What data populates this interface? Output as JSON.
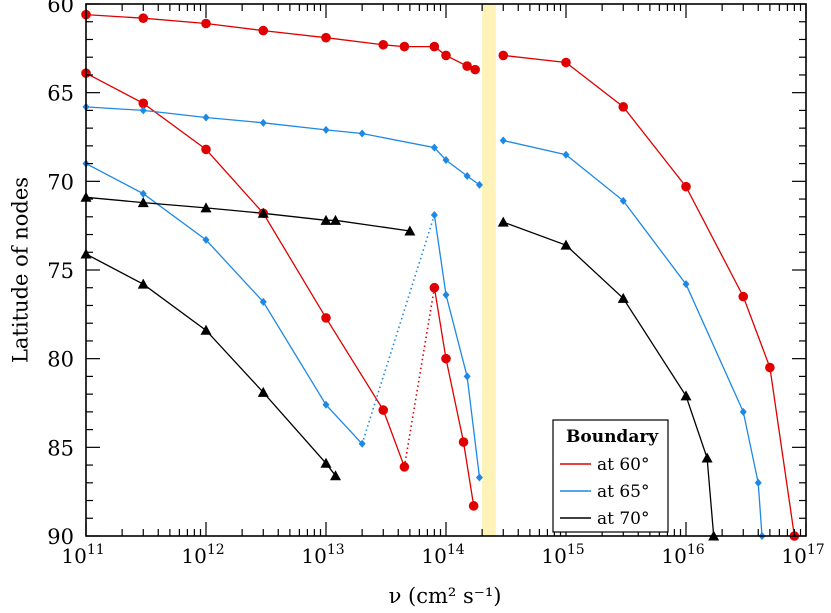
{
  "chart_data": {
    "type": "line",
    "title": "",
    "xlabel": "ν (cm² s⁻¹)",
    "ylabel": "Latitude of nodes",
    "x_scale": "log",
    "xlim": [
      100000000000.0,
      1e+17
    ],
    "ylim": [
      90,
      60
    ],
    "y_inverted": true,
    "grid": false,
    "x_ticks": [
      {
        "base": "10",
        "exp": "11",
        "value": 100000000000.0
      },
      {
        "base": "10",
        "exp": "12",
        "value": 1000000000000.0
      },
      {
        "base": "10",
        "exp": "13",
        "value": 10000000000000.0
      },
      {
        "base": "10",
        "exp": "14",
        "value": 100000000000000.0
      },
      {
        "base": "10",
        "exp": "15",
        "value": 1000000000000000.0
      },
      {
        "base": "10",
        "exp": "16",
        "value": 1e+16
      },
      {
        "base": "10",
        "exp": "17",
        "value": 1e+17
      }
    ],
    "y_ticks": [
      {
        "label": "60",
        "value": 60
      },
      {
        "label": "65",
        "value": 65
      },
      {
        "label": "70",
        "value": 70
      },
      {
        "label": "75",
        "value": 75
      },
      {
        "label": "80",
        "value": 80
      },
      {
        "label": "85",
        "value": 85
      },
      {
        "label": "90",
        "value": 90
      }
    ],
    "shaded_band": {
      "x_from": 200000000000000.0,
      "x_to": 260000000000000.0,
      "color": "#fdf2b8"
    },
    "legend": {
      "title": "Boundary",
      "position": "bottom-right",
      "entries": [
        {
          "label": "at 60°",
          "color": "#e00000"
        },
        {
          "label": "at 65°",
          "color": "#1e88e5"
        },
        {
          "label": "at 70°",
          "color": "#000000"
        }
      ]
    },
    "series": [
      {
        "color": "#e00000",
        "marker": "circle",
        "points": [
          [
            100000000000.0,
            60.6
          ],
          [
            300000000000.0,
            60.8
          ],
          [
            1000000000000.0,
            61.1
          ],
          [
            3000000000000.0,
            61.5
          ],
          [
            10000000000000.0,
            61.9
          ],
          [
            30000000000000.0,
            62.3
          ],
          [
            45000000000000.0,
            62.4
          ],
          [
            80000000000000.0,
            62.4
          ],
          [
            100000000000000.0,
            62.9
          ],
          [
            150000000000000.0,
            63.5
          ],
          [
            175000000000000.0,
            63.7
          ]
        ]
      },
      {
        "color": "#e00000",
        "marker": "circle",
        "points": [
          [
            300000000000000.0,
            62.9
          ],
          [
            1000000000000000.0,
            63.3
          ],
          [
            3000000000000000.0,
            65.8
          ],
          [
            1e+16,
            70.3
          ],
          [
            3e+16,
            76.5
          ],
          [
            5e+16,
            80.5
          ],
          [
            8e+16,
            90.5
          ]
        ]
      },
      {
        "color": "#e00000",
        "marker": "circle",
        "points": [
          [
            100000000000.0,
            63.9
          ],
          [
            300000000000.0,
            65.6
          ],
          [
            1000000000000.0,
            68.2
          ],
          [
            3000000000000.0,
            71.8
          ],
          [
            10000000000000.0,
            77.7
          ],
          [
            30000000000000.0,
            82.9
          ],
          [
            45000000000000.0,
            86.1
          ]
        ]
      },
      {
        "color": "#e00000",
        "marker": "circle",
        "dashed": true,
        "points": [
          [
            45000000000000.0,
            86.1
          ],
          [
            80000000000000.0,
            76.0
          ]
        ]
      },
      {
        "color": "#e00000",
        "marker": "circle",
        "points": [
          [
            80000000000000.0,
            76.0
          ],
          [
            100000000000000.0,
            80.0
          ],
          [
            140000000000000.0,
            84.7
          ],
          [
            170000000000000.0,
            88.3
          ]
        ]
      },
      {
        "color": "#1e88e5",
        "marker": "diamond",
        "points": [
          [
            100000000000.0,
            65.8
          ],
          [
            300000000000.0,
            66.0
          ],
          [
            1000000000000.0,
            66.4
          ],
          [
            3000000000000.0,
            66.7
          ],
          [
            10000000000000.0,
            67.1
          ],
          [
            20000000000000.0,
            67.3
          ],
          [
            80000000000000.0,
            68.1
          ],
          [
            100000000000000.0,
            68.8
          ],
          [
            150000000000000.0,
            69.7
          ],
          [
            190000000000000.0,
            70.2
          ]
        ]
      },
      {
        "color": "#1e88e5",
        "marker": "diamond",
        "points": [
          [
            300000000000000.0,
            67.7
          ],
          [
            1000000000000000.0,
            68.5
          ],
          [
            3000000000000000.0,
            71.1
          ],
          [
            1e+16,
            75.8
          ],
          [
            3e+16,
            83.0
          ],
          [
            4e+16,
            87.0
          ],
          [
            4.3e+16,
            90.5
          ]
        ]
      },
      {
        "color": "#1e88e5",
        "marker": "diamond",
        "points": [
          [
            100000000000.0,
            69.0
          ],
          [
            300000000000.0,
            70.7
          ],
          [
            1000000000000.0,
            73.3
          ],
          [
            3000000000000.0,
            76.8
          ],
          [
            10000000000000.0,
            82.6
          ],
          [
            20000000000000.0,
            84.8
          ]
        ]
      },
      {
        "color": "#1e88e5",
        "marker": "diamond",
        "dashed": true,
        "points": [
          [
            20000000000000.0,
            84.8
          ],
          [
            80000000000000.0,
            71.9
          ]
        ]
      },
      {
        "color": "#1e88e5",
        "marker": "diamond",
        "points": [
          [
            80000000000000.0,
            71.9
          ],
          [
            100000000000000.0,
            76.4
          ],
          [
            150000000000000.0,
            81.0
          ],
          [
            190000000000000.0,
            86.7
          ]
        ]
      },
      {
        "color": "#000000",
        "marker": "triangle",
        "points": [
          [
            100000000000.0,
            70.9
          ],
          [
            300000000000.0,
            71.2
          ],
          [
            1000000000000.0,
            71.5
          ],
          [
            3000000000000.0,
            71.8
          ],
          [
            10000000000000.0,
            72.2
          ],
          [
            12000000000000.0,
            72.2
          ],
          [
            50000000000000.0,
            72.8
          ]
        ]
      },
      {
        "color": "#000000",
        "marker": "triangle",
        "points": [
          [
            300000000000000.0,
            72.3
          ],
          [
            1000000000000000.0,
            73.6
          ],
          [
            3000000000000000.0,
            76.6
          ],
          [
            1e+16,
            82.1
          ],
          [
            1.5e+16,
            85.6
          ],
          [
            1.7e+16,
            90.5
          ]
        ]
      },
      {
        "color": "#000000",
        "marker": "triangle",
        "points": [
          [
            100000000000.0,
            74.1
          ],
          [
            300000000000.0,
            75.8
          ],
          [
            1000000000000.0,
            78.4
          ],
          [
            3000000000000.0,
            81.9
          ],
          [
            10000000000000.0,
            85.9
          ],
          [
            12000000000000.0,
            86.6
          ]
        ]
      }
    ]
  }
}
